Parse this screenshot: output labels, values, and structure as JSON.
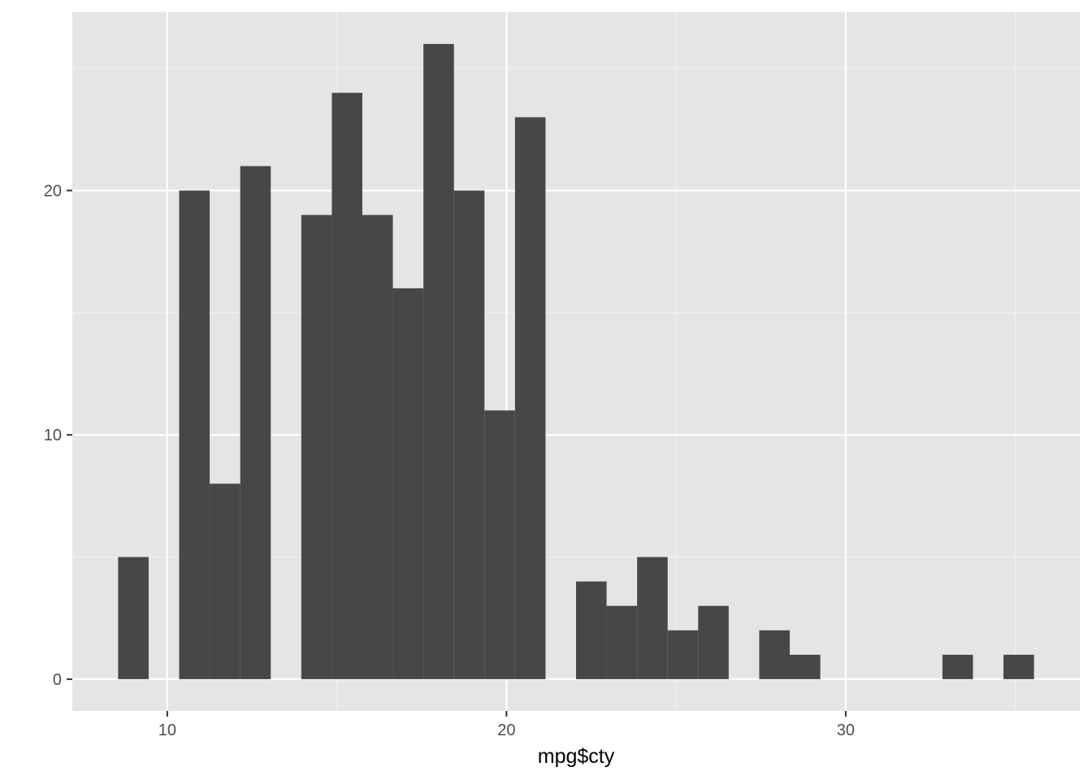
{
  "chart_data": {
    "type": "bar",
    "subtype": "histogram",
    "title": "",
    "xlabel": "mpg$cty",
    "ylabel": "",
    "xlim": [
      7.2,
      36.9
    ],
    "ylim": [
      -1.3,
      27.3
    ],
    "x_ticks": [
      10,
      20,
      30
    ],
    "x_tick_labels": [
      "10",
      "20",
      "30"
    ],
    "y_ticks": [
      0,
      10,
      20
    ],
    "y_tick_labels": [
      "0",
      "10",
      "20"
    ],
    "grid": true,
    "legend": "none",
    "bin_width": 0.9,
    "bins": [
      {
        "x0": 8.55,
        "x1": 9.45,
        "count": 5
      },
      {
        "x0": 9.45,
        "x1": 10.35,
        "count": 0
      },
      {
        "x0": 10.35,
        "x1": 11.25,
        "count": 20
      },
      {
        "x0": 11.25,
        "x1": 12.15,
        "count": 8
      },
      {
        "x0": 12.15,
        "x1": 13.05,
        "count": 21
      },
      {
        "x0": 13.05,
        "x1": 13.95,
        "count": 0
      },
      {
        "x0": 13.95,
        "x1": 14.85,
        "count": 19
      },
      {
        "x0": 14.85,
        "x1": 15.75,
        "count": 24
      },
      {
        "x0": 15.75,
        "x1": 16.65,
        "count": 19
      },
      {
        "x0": 16.65,
        "x1": 17.55,
        "count": 16
      },
      {
        "x0": 17.55,
        "x1": 18.45,
        "count": 26
      },
      {
        "x0": 18.45,
        "x1": 19.35,
        "count": 20
      },
      {
        "x0": 19.35,
        "x1": 20.25,
        "count": 11
      },
      {
        "x0": 20.25,
        "x1": 21.15,
        "count": 23
      },
      {
        "x0": 21.15,
        "x1": 22.05,
        "count": 0
      },
      {
        "x0": 22.05,
        "x1": 22.95,
        "count": 4
      },
      {
        "x0": 22.95,
        "x1": 23.85,
        "count": 3
      },
      {
        "x0": 23.85,
        "x1": 24.75,
        "count": 5
      },
      {
        "x0": 24.75,
        "x1": 25.65,
        "count": 2
      },
      {
        "x0": 25.65,
        "x1": 26.55,
        "count": 3
      },
      {
        "x0": 26.55,
        "x1": 27.45,
        "count": 0
      },
      {
        "x0": 27.45,
        "x1": 28.35,
        "count": 2
      },
      {
        "x0": 28.35,
        "x1": 29.25,
        "count": 1
      },
      {
        "x0": 29.25,
        "x1": 30.15,
        "count": 0
      },
      {
        "x0": 30.15,
        "x1": 31.05,
        "count": 0
      },
      {
        "x0": 31.05,
        "x1": 31.95,
        "count": 0
      },
      {
        "x0": 31.95,
        "x1": 32.85,
        "count": 0
      },
      {
        "x0": 32.85,
        "x1": 33.75,
        "count": 1
      },
      {
        "x0": 33.75,
        "x1": 34.65,
        "count": 0
      },
      {
        "x0": 34.65,
        "x1": 35.55,
        "count": 1
      }
    ],
    "colors": {
      "panel_background": "#e5e5e5",
      "grid_major": "#ffffff",
      "grid_minor": "#f2f2f2",
      "bar_fill": "#474747",
      "tick_mark": "#333333",
      "tick_label": "#4d4d4d",
      "axis_title": "#000000"
    }
  }
}
